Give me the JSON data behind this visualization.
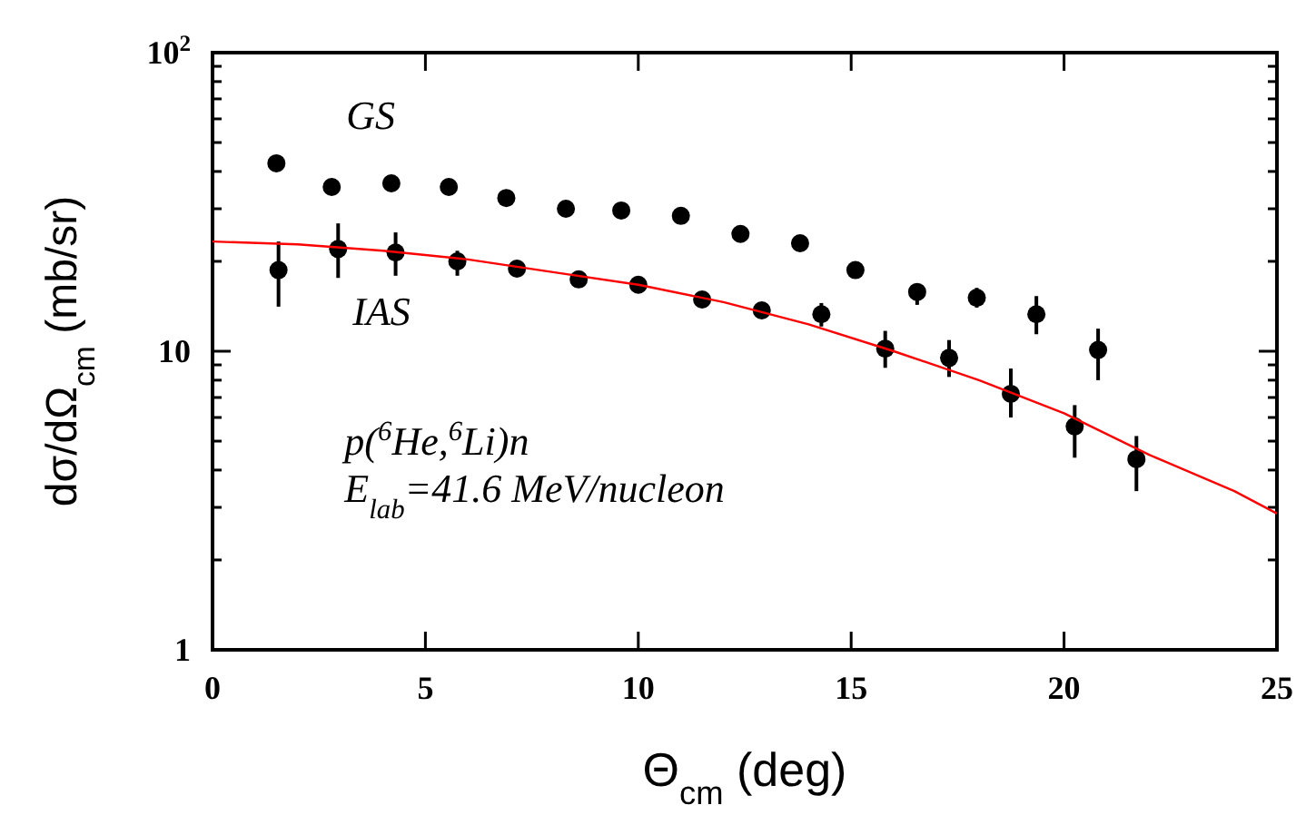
{
  "chart_data": {
    "type": "scatter",
    "xlabel": "Θ$_{cm}$ (deg)",
    "ylabel": "dσ/dΩ$_{cm}$ (mb/sr)",
    "log": "y",
    "grid": false,
    "marker": "circle",
    "xlim": [
      0,
      25
    ],
    "xticks": [
      0,
      5,
      10,
      15,
      20,
      25
    ],
    "ylim": [
      1,
      100
    ],
    "yticks": [
      1,
      {
        "value": 2,
        "label": null
      },
      {
        "value": 3,
        "label": null
      },
      {
        "value": 4,
        "label": null
      },
      {
        "value": 5,
        "label": null
      },
      {
        "value": 6,
        "label": null
      },
      {
        "value": 7,
        "label": null
      },
      {
        "value": 8,
        "label": null
      },
      {
        "value": 9,
        "label": null
      },
      10,
      {
        "value": 20,
        "label": null
      },
      {
        "value": 30,
        "label": null
      },
      {
        "value": 40,
        "label": null
      },
      {
        "value": 50,
        "label": null
      },
      {
        "value": 60,
        "label": null
      },
      {
        "value": 70,
        "label": null
      },
      {
        "value": 80,
        "label": null
      },
      {
        "value": 90,
        "label": null
      },
      {
        "value": 100,
        "label": "10$^{2}$"
      }
    ],
    "series": [
      {
        "name": "GS",
        "color": "#000000",
        "x": [
          1.5,
          2.8,
          4.2,
          5.55,
          6.9,
          8.3,
          9.6,
          11.0,
          12.4,
          13.8,
          15.1,
          16.55,
          17.95,
          19.35,
          20.8
        ],
        "values": [
          42.6,
          35.5,
          36.5,
          35.5,
          32.6,
          30.0,
          29.6,
          28.4,
          24.7,
          23.0,
          18.7,
          15.8,
          15.1,
          13.3,
          10.1
        ],
        "errors": [
          null,
          null,
          null,
          null,
          null,
          null,
          null,
          null,
          null,
          null,
          null,
          [
            14.3,
            16.7
          ],
          [
            14.0,
            16.3
          ],
          [
            11.4,
            15.3
          ],
          [
            8.0,
            11.9
          ]
        ]
      },
      {
        "name": "IAS",
        "color": "#000000",
        "x": [
          1.55,
          2.95,
          4.3,
          5.75,
          7.15,
          8.6,
          10.0,
          11.5,
          12.9,
          14.3,
          15.8,
          17.3,
          18.75,
          20.25,
          21.7
        ],
        "values": [
          18.7,
          22.0,
          21.4,
          20.0,
          18.9,
          17.4,
          16.7,
          14.9,
          13.7,
          13.3,
          10.2,
          9.5,
          7.2,
          5.6,
          4.35
        ],
        "errors": [
          [
            14.1,
            23.3
          ],
          [
            17.6,
            26.8
          ],
          [
            17.9,
            25.0
          ],
          [
            17.9,
            21.7
          ],
          null,
          null,
          null,
          null,
          null,
          [
            12.1,
            14.5
          ],
          [
            8.8,
            11.7
          ],
          [
            8.2,
            10.9
          ],
          [
            6.0,
            8.75
          ],
          [
            4.4,
            6.6
          ],
          [
            3.4,
            5.2
          ]
        ]
      },
      {
        "type": "line",
        "color": "#ff0000",
        "line_style": "solid",
        "marker": "none",
        "x": [
          0,
          2,
          4,
          6,
          8,
          10,
          12,
          14,
          16,
          18,
          20,
          22,
          24,
          25
        ],
        "values": [
          23.3,
          22.8,
          21.7,
          20.3,
          18.4,
          16.7,
          14.6,
          12.3,
          10.0,
          8.0,
          6.2,
          4.5,
          3.4,
          2.86
        ]
      }
    ],
    "annotations": [
      "p($^{6}$He,$^{6}$Li)n",
      "E$_{lab}$=41.6 MeV/nucleon"
    ]
  }
}
